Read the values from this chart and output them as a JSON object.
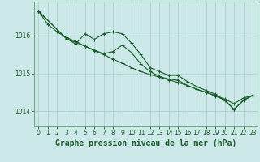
{
  "background_color": "#cce8e8",
  "grid_color": "#aacfcf",
  "line_color": "#1a5c2a",
  "marker_color": "#1a5c2a",
  "title": "Graphe pression niveau de la mer (hPa)",
  "xlim": [
    -0.5,
    23.5
  ],
  "ylim": [
    1013.6,
    1016.9
  ],
  "yticks": [
    1014,
    1015,
    1016
  ],
  "xticks": [
    0,
    1,
    2,
    3,
    4,
    5,
    6,
    7,
    8,
    9,
    10,
    11,
    12,
    13,
    14,
    15,
    16,
    17,
    18,
    19,
    20,
    21,
    22,
    23
  ],
  "series": [
    {
      "x": [
        0,
        1,
        2,
        3,
        4,
        5,
        6,
        7,
        8,
        9,
        10,
        11,
        12,
        13,
        14,
        15,
        16,
        17,
        18,
        19,
        20,
        21,
        22,
        23
      ],
      "y": [
        1016.65,
        1016.3,
        1016.1,
        1015.95,
        1015.85,
        1015.72,
        1015.6,
        1015.5,
        1015.38,
        1015.27,
        1015.15,
        1015.05,
        1014.97,
        1014.9,
        1014.83,
        1014.76,
        1014.68,
        1014.58,
        1014.5,
        1014.42,
        1014.32,
        1014.2,
        1014.35,
        1014.42
      ]
    },
    {
      "x": [
        0,
        3,
        4,
        5,
        6,
        7,
        8,
        9,
        10,
        11,
        12,
        13,
        14,
        15,
        16,
        17,
        18,
        19,
        20,
        21,
        22,
        23
      ],
      "y": [
        1016.65,
        1015.92,
        1015.78,
        1016.05,
        1015.9,
        1016.05,
        1016.1,
        1016.05,
        1015.8,
        1015.5,
        1015.15,
        1015.05,
        1014.95,
        1014.95,
        1014.78,
        1014.65,
        1014.55,
        1014.45,
        1014.28,
        1014.05,
        1014.3,
        1014.42
      ]
    },
    {
      "x": [
        0,
        3,
        5,
        6,
        7,
        8,
        9,
        10,
        11,
        12,
        13,
        14,
        15,
        16,
        17,
        18,
        19,
        20,
        21,
        22,
        23
      ],
      "y": [
        1016.65,
        1015.92,
        1015.72,
        1015.62,
        1015.52,
        1015.58,
        1015.75,
        1015.55,
        1015.25,
        1015.05,
        1014.92,
        1014.85,
        1014.82,
        1014.68,
        1014.58,
        1014.5,
        1014.4,
        1014.3,
        1014.05,
        1014.28,
        1014.42
      ]
    }
  ],
  "title_fontsize": 7,
  "tick_fontsize": 5.5,
  "title_color": "#1a5c2a",
  "tick_color": "#1a5c2a",
  "spine_color": "#5a9a6a",
  "linewidth": 0.8,
  "markersize": 3.0,
  "markeredgewidth": 0.8
}
